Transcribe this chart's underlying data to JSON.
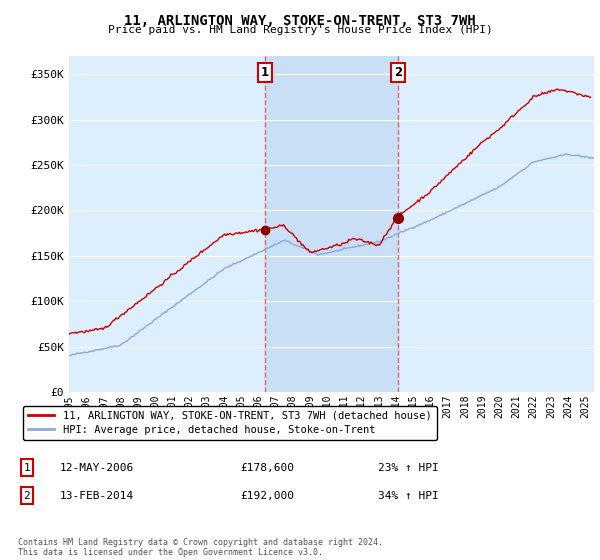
{
  "title": "11, ARLINGTON WAY, STOKE-ON-TRENT, ST3 7WH",
  "subtitle": "Price paid vs. HM Land Registry's House Price Index (HPI)",
  "ylabel_ticks": [
    "£0",
    "£50K",
    "£100K",
    "£150K",
    "£200K",
    "£250K",
    "£300K",
    "£350K"
  ],
  "ytick_values": [
    0,
    50000,
    100000,
    150000,
    200000,
    250000,
    300000,
    350000
  ],
  "ylim": [
    0,
    370000
  ],
  "xlim_start": 1995.0,
  "xlim_end": 2025.5,
  "sale1_x": 2006.36,
  "sale1_y": 178600,
  "sale2_x": 2014.12,
  "sale2_y": 192000,
  "sale1_label": "12-MAY-2006",
  "sale1_price": "£178,600",
  "sale1_hpi": "23% ↑ HPI",
  "sale2_label": "13-FEB-2014",
  "sale2_price": "£192,000",
  "sale2_hpi": "34% ↑ HPI",
  "legend_line1": "11, ARLINGTON WAY, STOKE-ON-TRENT, ST3 7WH (detached house)",
  "legend_line2": "HPI: Average price, detached house, Stoke-on-Trent",
  "footnote": "Contains HM Land Registry data © Crown copyright and database right 2024.\nThis data is licensed under the Open Government Licence v3.0.",
  "line_color_red": "#cc0000",
  "line_color_blue": "#88aadd",
  "bg_color": "#ddeeff",
  "highlight_color": "#c8dff5",
  "grid_color": "#ffffff",
  "vline_color": "#ee6666"
}
